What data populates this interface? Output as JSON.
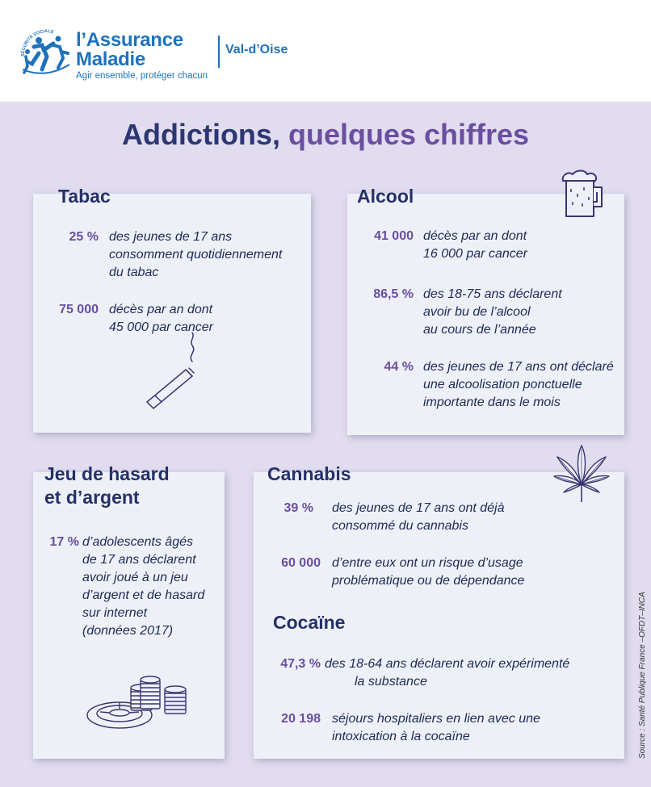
{
  "header": {
    "brand_line1": "l’Assurance",
    "brand_line2": "Maladie",
    "tagline": "Agir ensemble, protéger chacun",
    "region": "Val-d’Oise",
    "arc_text": "SÉCURITÉ SOCIALE"
  },
  "title": {
    "part1": "Addictions,",
    "part2": "quelques chiffres"
  },
  "tabac": {
    "heading": "Tabac",
    "stats": [
      {
        "value": "25 %",
        "lines": [
          "des jeunes de 17 ans",
          "consomment quotidiennement",
          "du tabac"
        ]
      },
      {
        "value": "75 000",
        "lines": [
          "décès par an dont",
          "45 000 par cancer"
        ]
      }
    ]
  },
  "alcool": {
    "heading": "Alcool",
    "stats": [
      {
        "value": "41 000",
        "lines": [
          "décès par an dont",
          "16 000 par cancer"
        ]
      },
      {
        "value": "86,5 %",
        "lines": [
          "des 18-75 ans déclarent",
          "avoir bu de l’alcool",
          "au cours de l’année"
        ]
      },
      {
        "value": "44 %",
        "lines": [
          "des jeunes de 17 ans ont déclaré",
          "une alcoolisation ponctuelle",
          "importante dans le mois"
        ]
      }
    ]
  },
  "jeu": {
    "heading_line1": "Jeu de hasard",
    "heading_line2": "et d’argent",
    "stats": [
      {
        "value": "17 %",
        "lines": [
          "d’adolescents âgés",
          "de 17 ans déclarent",
          "avoir joué à un jeu",
          "d’argent et de hasard",
          "sur internet",
          "(données 2017)"
        ]
      }
    ]
  },
  "cannabis": {
    "heading": "Cannabis",
    "stats": [
      {
        "value": "39 %",
        "lines": [
          "des jeunes de 17 ans ont déjà",
          "consommé du cannabis"
        ]
      },
      {
        "value": "60 000",
        "lines": [
          "d’entre eux ont un risque d’usage",
          "problématique ou de dépendance"
        ]
      }
    ]
  },
  "cocaine": {
    "heading": "Cocaïne",
    "stats": [
      {
        "value": "47,3 %",
        "lines": [
          "des 18-64 ans déclarent avoir expérimenté",
          "la substance"
        ]
      },
      {
        "value": "20 198",
        "lines": [
          "séjours hospitaliers en lien avec une",
          "intoxication à la cocaïne"
        ]
      }
    ]
  },
  "source": "Source : Santé Publique France –OFDT–INCA",
  "icons": {
    "logo": "family-figures-logo-icon",
    "beer": "beer-mug-icon",
    "cigarette": "cigarette-icon",
    "cannabis": "cannabis-leaf-icon",
    "gambling": "roulette-chips-icon"
  },
  "colors": {
    "brand_blue": "#1e72bd",
    "navy": "#243168",
    "purple": "#6a4ea0",
    "lavender_bg": "#e1dcef",
    "card_bg": "#eef0f8"
  }
}
